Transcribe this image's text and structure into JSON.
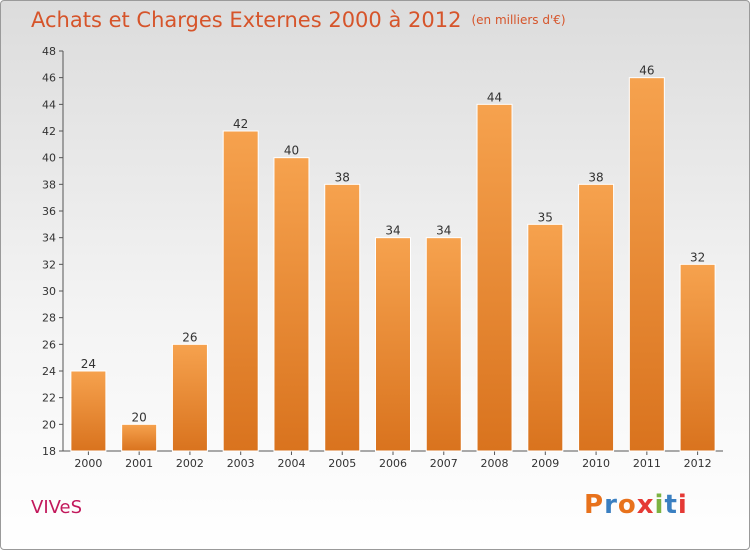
{
  "header": {
    "title": "Achats et Charges Externes 2000 à 2012",
    "unit": "(en milliers d'€)"
  },
  "footer": {
    "town": "VIVeS",
    "brand": "Proxiti",
    "brand_colors": [
      "#e8721c",
      "#3a7fc1",
      "#e8721c",
      "#e53935",
      "#7cb342",
      "#3a7fc1",
      "#e53935"
    ]
  },
  "colors": {
    "bar_light": "#f6a24e",
    "bar_dark": "#d9731e",
    "title": "#d6542a",
    "town": "#c2185b"
  },
  "chart_data": {
    "type": "bar",
    "title": "Achats et Charges Externes 2000 à 2012",
    "unit": "(en milliers d'€)",
    "categories": [
      "2000",
      "2001",
      "2002",
      "2003",
      "2004",
      "2005",
      "2006",
      "2007",
      "2008",
      "2009",
      "2010",
      "2011",
      "2012"
    ],
    "values": [
      24,
      20,
      26,
      42,
      40,
      38,
      34,
      34,
      44,
      35,
      38,
      46,
      32
    ],
    "ylim": [
      18,
      48
    ],
    "yticks": [
      18,
      20,
      22,
      24,
      26,
      28,
      30,
      32,
      34,
      36,
      38,
      40,
      42,
      44,
      46,
      48
    ],
    "grid": false,
    "data_labels": true
  }
}
